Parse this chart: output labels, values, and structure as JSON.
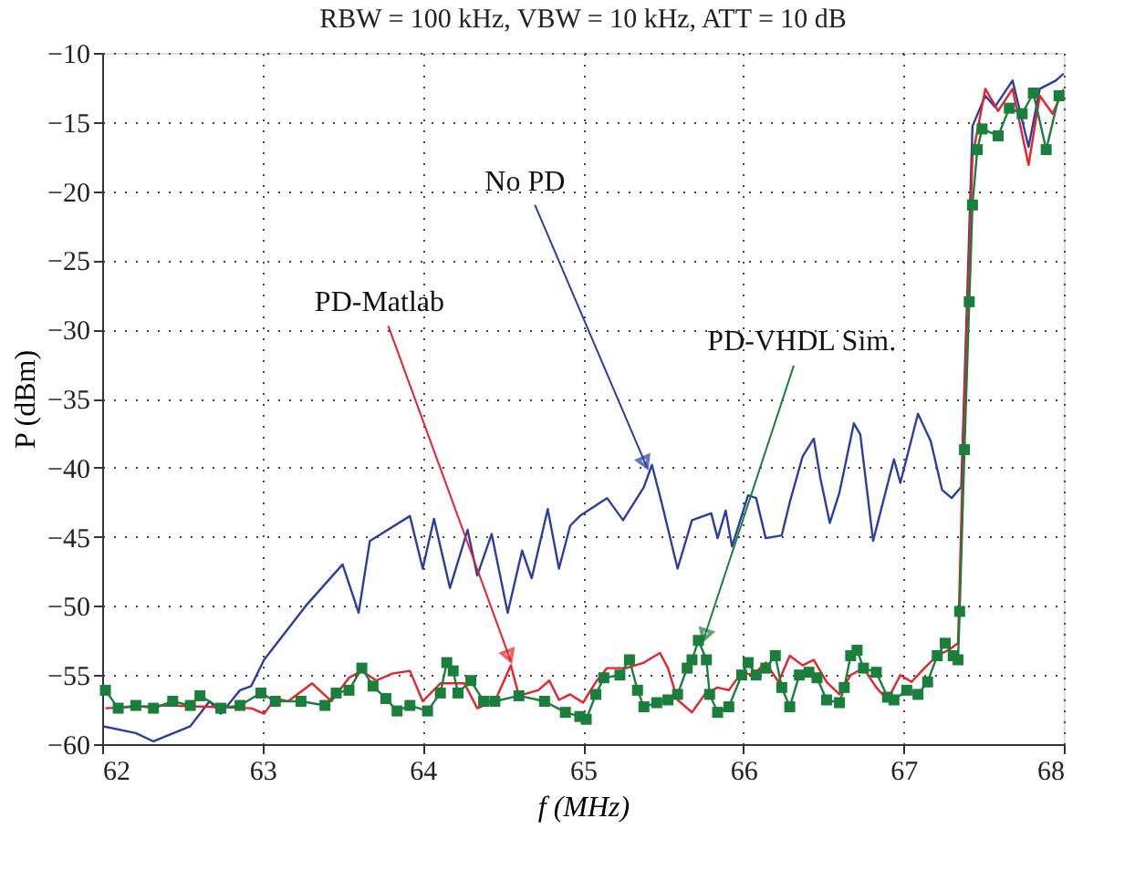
{
  "chart_data": {
    "type": "line",
    "title": "RBW = 100 kHz, VBW = 10 kHz, ATT = 10 dB",
    "xlabel": "f (MHz)",
    "ylabel": "P (dBm)",
    "xlim": [
      62,
      68
    ],
    "xticks": [
      62,
      63,
      64,
      65,
      66,
      67,
      68
    ],
    "ylim": [
      -60,
      -10
    ],
    "yticks": [
      -60,
      -55,
      -50,
      -45,
      -40,
      -35,
      -30,
      -25,
      -20,
      -15,
      -10
    ],
    "grid": true,
    "series": [
      {
        "color": "#2b3f9e",
        "marker": "none",
        "x": [
          62.0,
          62.21,
          62.32,
          62.55,
          62.67,
          62.74,
          62.86,
          62.93,
          63.01,
          63.27,
          63.5,
          63.6,
          63.67,
          63.92,
          64.0,
          64.07,
          64.17,
          64.28,
          64.34,
          64.43,
          64.53,
          64.62,
          64.68,
          64.78,
          64.85,
          64.92,
          64.98,
          65.15,
          65.25,
          65.38,
          65.43,
          65.49,
          65.59,
          65.68,
          65.8,
          65.84,
          65.89,
          65.93,
          66.03,
          66.08,
          66.14,
          66.24,
          66.29,
          66.37,
          66.44,
          66.48,
          66.54,
          66.6,
          66.69,
          66.73,
          66.81,
          66.94,
          66.98,
          67.09,
          67.17,
          67.24,
          67.3,
          67.36,
          67.43,
          67.51,
          67.57,
          67.68,
          67.78,
          67.85,
          67.95,
          68.0
        ],
        "values": [
          -58.7,
          -59.2,
          -59.8,
          -58.7,
          -56.9,
          -57.8,
          -56.1,
          -55.8,
          -53.9,
          -50,
          -47,
          -50.5,
          -45.3,
          -43.5,
          -47.3,
          -43.7,
          -48.7,
          -44.5,
          -47.8,
          -44.8,
          -50.5,
          -46,
          -48,
          -43,
          -47.3,
          -44.2,
          -43.5,
          -42.2,
          -43.8,
          -41.4,
          -39.8,
          -42.5,
          -47.3,
          -43.8,
          -43.3,
          -45.1,
          -43.1,
          -45.7,
          -42,
          -42.2,
          -45.1,
          -44.9,
          -42.5,
          -39.2,
          -37.9,
          -40.7,
          -44,
          -41.8,
          -36.8,
          -37.6,
          -45.3,
          -39.4,
          -41.1,
          -36.1,
          -38.1,
          -41.6,
          -42.2,
          -41.4,
          -15.3,
          -13.1,
          -13.9,
          -12,
          -16.8,
          -12.6,
          -12,
          -11.5
        ]
      },
      {
        "color": "#e8212a",
        "marker": "none",
        "x": [
          62.02,
          62.4,
          62.93,
          63.01,
          63.08,
          63.16,
          63.31,
          63.43,
          63.54,
          63.62,
          63.71,
          63.81,
          63.92,
          64.0,
          64.11,
          64.26,
          64.34,
          64.45,
          64.55,
          64.6,
          64.72,
          64.79,
          64.85,
          64.92,
          65.0,
          65.08,
          65.15,
          65.27,
          65.38,
          65.48,
          65.53,
          65.59,
          65.68,
          65.76,
          65.84,
          65.91,
          65.99,
          66.06,
          66.14,
          66.22,
          66.29,
          66.37,
          66.44,
          66.52,
          66.6,
          66.67,
          66.75,
          66.83,
          66.9,
          66.98,
          67.05,
          67.13,
          67.21,
          67.28,
          67.34,
          67.38,
          67.43,
          67.51,
          67.59,
          67.68,
          67.78,
          67.85,
          67.93,
          68.0
        ],
        "values": [
          -57.4,
          -57.2,
          -57.4,
          -57.8,
          -56.7,
          -56.9,
          -55.6,
          -56.9,
          -55.2,
          -54.7,
          -55.4,
          -54.9,
          -54.7,
          -56.9,
          -55.6,
          -55.6,
          -57.4,
          -56.9,
          -54.3,
          -56.5,
          -56.1,
          -55.4,
          -56.8,
          -56.4,
          -57,
          -55.5,
          -54.5,
          -54.5,
          -54.1,
          -53.4,
          -54.5,
          -56.8,
          -57.7,
          -56.4,
          -55.9,
          -56.1,
          -54.8,
          -55,
          -54.1,
          -55.5,
          -53.6,
          -54.3,
          -53.9,
          -55.5,
          -56.4,
          -55,
          -54.5,
          -55.9,
          -56.8,
          -55,
          -55.5,
          -54.5,
          -53.6,
          -53.2,
          -52.7,
          -35,
          -17.5,
          -12.6,
          -14.2,
          -12.6,
          -18.1,
          -13.1,
          -14.4,
          -12.6
        ]
      },
      {
        "color": "#1a7f3c",
        "marker": "square",
        "x": [
          62.02,
          62.1,
          62.21,
          62.32,
          62.44,
          62.55,
          62.61,
          62.74,
          62.86,
          62.99,
          63.08,
          63.24,
          63.39,
          63.46,
          63.54,
          63.62,
          63.69,
          63.77,
          63.84,
          63.92,
          64.03,
          64.11,
          64.15,
          64.19,
          64.22,
          64.3,
          64.38,
          64.45,
          64.6,
          64.76,
          64.89,
          64.98,
          65.02,
          65.08,
          65.13,
          65.23,
          65.29,
          65.34,
          65.38,
          65.46,
          65.53,
          65.59,
          65.65,
          65.68,
          65.72,
          65.77,
          65.79,
          65.84,
          65.91,
          65.99,
          66.03,
          66.08,
          66.14,
          66.2,
          66.24,
          66.29,
          66.35,
          66.41,
          66.46,
          66.52,
          66.6,
          66.63,
          66.67,
          66.71,
          66.75,
          66.83,
          66.9,
          66.94,
          67.02,
          67.09,
          67.15,
          67.21,
          67.26,
          67.31,
          67.34,
          67.35,
          67.38,
          67.41,
          67.43,
          67.46,
          67.49,
          67.59,
          67.66,
          67.74,
          67.81,
          67.89,
          67.97
        ],
        "values": [
          -56.1,
          -57.4,
          -57.2,
          -57.4,
          -56.9,
          -57.2,
          -56.5,
          -57.4,
          -57.2,
          -56.3,
          -56.9,
          -56.9,
          -57.2,
          -56.3,
          -56.1,
          -54.5,
          -55.8,
          -56.7,
          -57.6,
          -57.2,
          -57.6,
          -56.3,
          -54.1,
          -54.7,
          -56.3,
          -55.4,
          -56.9,
          -56.9,
          -56.5,
          -56.9,
          -57.7,
          -58,
          -58.2,
          -56.4,
          -55.2,
          -55,
          -53.9,
          -56.1,
          -57.3,
          -57,
          -56.8,
          -56.4,
          -54.5,
          -53.9,
          -52.5,
          -53.9,
          -56.4,
          -57.7,
          -57.3,
          -55,
          -54.1,
          -55,
          -54.5,
          -53.6,
          -55.9,
          -57.3,
          -55,
          -54.8,
          -55.2,
          -56.8,
          -57,
          -55.9,
          -53.6,
          -53.2,
          -54.5,
          -54.8,
          -56.6,
          -56.8,
          -56.1,
          -56.4,
          -55.5,
          -53.6,
          -52.7,
          -53.6,
          -53.9,
          -50.4,
          -38.7,
          -28,
          -21,
          -17,
          -15.5,
          -16,
          -14,
          -14.4,
          -12.9,
          -17,
          -13.1
        ]
      }
    ],
    "annotations": [
      {
        "text": "No PD",
        "x": 65.4,
        "y": -40
      },
      {
        "text": "PD-Matlab",
        "x": 64.55,
        "y": -54
      },
      {
        "text": "PD-VHDL Sim.",
        "x": 65.75,
        "y": -52.5
      }
    ]
  }
}
